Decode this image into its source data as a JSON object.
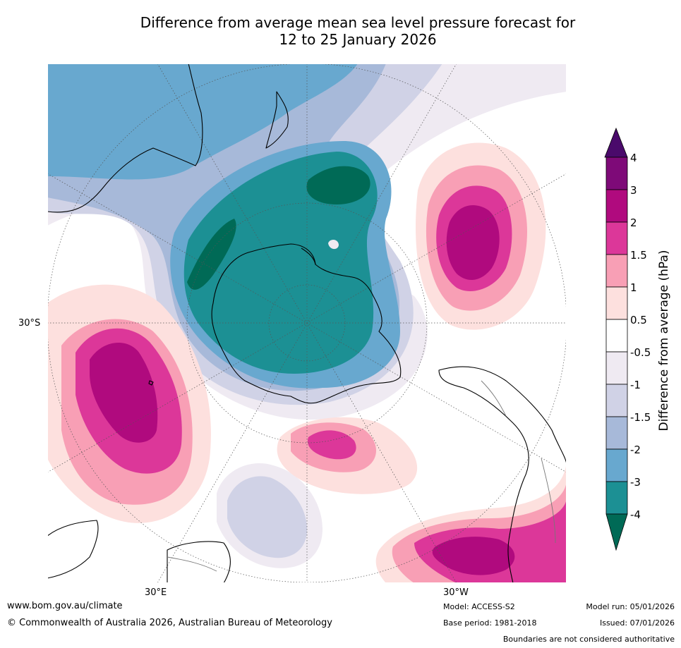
{
  "title": {
    "line1": "Difference from average mean sea level pressure forecast for",
    "line2": "12 to 25 January 2026"
  },
  "map": {
    "projection": "south-polar stereographic",
    "labels": {
      "lat_30s": "30°S",
      "lon_30e": "30°E",
      "lon_30w": "30°W"
    },
    "anomaly_centres": [
      {
        "name": "negative-anomaly-south-of-new-zealand",
        "value_band": "-4"
      },
      {
        "name": "negative-anomaly-south-indian-ocean",
        "value_band": "-4"
      },
      {
        "name": "positive-anomaly-south-atlantic",
        "value_band": "3"
      },
      {
        "name": "positive-anomaly-south-pacific",
        "value_band": "3"
      },
      {
        "name": "positive-anomaly-southern-ocean",
        "value_band": "2"
      },
      {
        "name": "positive-anomaly-south-america",
        "value_band": "3"
      },
      {
        "name": "negative-anomaly-indian-ocean",
        "value_band": "-1.5"
      }
    ]
  },
  "colorbar": {
    "title": "Difference from average (hPa)",
    "ticks": [
      "4",
      "3",
      "2",
      "1.5",
      "1",
      "0.5",
      "-0.5",
      "-1",
      "-1.5",
      "-2",
      "-3",
      "-4"
    ],
    "colors": {
      "above_4": "#4a0a6b",
      "3_to_4": "#7e0a78",
      "2_to_3": "#b00a7e",
      "1.5_to_2": "#dc3799",
      "1_to_1.5": "#f89fb5",
      "0.5_to_1": "#fde0de",
      "-0.5_to_0.5": "#ffffff",
      "-1_to_-0.5": "#efeaf2",
      "-1.5_to_-1": "#d0d2e6",
      "-2_to_-1.5": "#a7b9d9",
      "-3_to_-2": "#68a8cf",
      "-4_to_-3": "#1c9094",
      "below_-4": "#006a56"
    }
  },
  "footer": {
    "website": "www.bom.gov.au/climate",
    "copyright": "© Commonwealth of Australia 2026, Australian Bureau of Meteorology",
    "model": "Model: ACCESS-S2",
    "base_period": "Base period: 1981-2018",
    "model_run": "Model run: 05/01/2026",
    "issued": "Issued: 07/01/2026",
    "disclaimer": "Boundaries are not considered authoritative"
  }
}
